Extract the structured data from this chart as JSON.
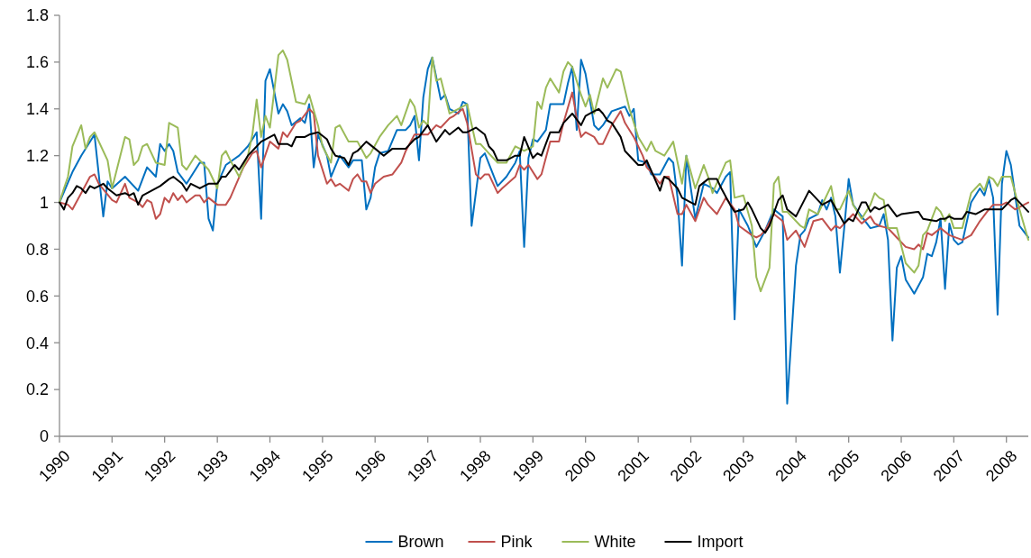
{
  "chart_data": {
    "type": "line",
    "xlim": [
      "1990-01",
      "2008-06"
    ],
    "xticks": [
      "1990",
      "1991",
      "1992",
      "1993",
      "1994",
      "1995",
      "1996",
      "1997",
      "1998",
      "1999",
      "2000",
      "2001",
      "2002",
      "2003",
      "2004",
      "2005",
      "2006",
      "2007",
      "2008"
    ],
    "ylim": [
      0,
      1.8
    ],
    "yticks": [
      0,
      0.2,
      0.4,
      0.6,
      0.8,
      1,
      1.2,
      1.4,
      1.6,
      1.8
    ],
    "legend": "bottom",
    "series": [
      {
        "name": "Brown",
        "color": "#0070c0",
        "x": [
          "1990-01",
          "1990-04",
          "1990-06",
          "1990-09",
          "1990-11",
          "1990-12",
          "1991-01",
          "1991-04",
          "1991-07",
          "1991-09",
          "1991-11",
          "1991-12",
          "1992-01",
          "1992-02",
          "1992-03",
          "1992-04",
          "1992-06",
          "1992-09",
          "1992-10",
          "1992-11",
          "1992-12",
          "1993-01",
          "1993-03",
          "1993-06",
          "1993-08",
          "1993-10",
          "1993-11",
          "1993-12",
          "1994-01",
          "1994-03",
          "1994-04",
          "1994-05",
          "1994-06",
          "1994-08",
          "1994-09",
          "1994-10",
          "1994-11",
          "1994-12",
          "1995-02",
          "1995-03",
          "1995-05",
          "1995-07",
          "1995-08",
          "1995-10",
          "1995-11",
          "1995-12",
          "1996-01",
          "1996-02",
          "1996-04",
          "1996-06",
          "1996-08",
          "1996-09",
          "1996-10",
          "1996-11",
          "1996-12",
          "1997-01",
          "1997-02",
          "1997-04",
          "1997-05",
          "1997-06",
          "1997-08",
          "1997-09",
          "1997-10",
          "1997-11",
          "1998-01",
          "1998-02",
          "1998-05",
          "1998-07",
          "1998-09",
          "1998-10",
          "1998-11",
          "1998-12",
          "1999-01",
          "1999-02",
          "1999-04",
          "1999-05",
          "1999-07",
          "1999-08",
          "1999-09",
          "1999-10",
          "1999-11",
          "1999-12",
          "2000-01",
          "2000-03",
          "2000-04",
          "2000-05",
          "2000-07",
          "2000-10",
          "2000-11",
          "2000-12",
          "2001-01",
          "2001-03",
          "2001-04",
          "2001-06",
          "2001-08",
          "2001-09",
          "2001-10",
          "2001-11",
          "2001-12",
          "2002-01",
          "2002-02",
          "2002-04",
          "2002-06",
          "2002-07",
          "2002-09",
          "2002-10",
          "2002-11",
          "2002-12",
          "2003-02",
          "2003-04",
          "2003-06",
          "2003-08",
          "2003-10",
          "2003-11",
          "2004-01",
          "2004-02",
          "2004-03",
          "2004-04",
          "2004-06",
          "2004-07",
          "2004-08",
          "2004-09",
          "2004-10",
          "2004-11",
          "2004-12",
          "2005-01",
          "2005-02",
          "2005-04",
          "2005-06",
          "2005-08",
          "2005-09",
          "2005-10",
          "2005-11",
          "2005-12",
          "2006-01",
          "2006-02",
          "2006-04",
          "2006-06",
          "2006-07",
          "2006-08",
          "2006-09",
          "2006-10",
          "2006-11",
          "2006-12",
          "2007-01",
          "2007-02",
          "2007-03",
          "2007-05",
          "2007-07",
          "2007-08",
          "2007-09",
          "2007-10",
          "2007-11",
          "2007-12",
          "2008-01",
          "2008-02",
          "2008-04",
          "2008-06"
        ],
        "values": [
          1.0,
          1.13,
          1.2,
          1.29,
          0.94,
          1.09,
          1.06,
          1.11,
          1.05,
          1.15,
          1.11,
          1.25,
          1.22,
          1.25,
          1.22,
          1.13,
          1.08,
          1.17,
          1.17,
          0.93,
          0.88,
          1.08,
          1.16,
          1.2,
          1.24,
          1.3,
          0.93,
          1.52,
          1.57,
          1.38,
          1.42,
          1.39,
          1.33,
          1.36,
          1.34,
          1.42,
          1.15,
          1.29,
          1.2,
          1.11,
          1.2,
          1.15,
          1.18,
          1.18,
          0.97,
          1.02,
          1.15,
          1.21,
          1.22,
          1.31,
          1.31,
          1.33,
          1.37,
          1.18,
          1.45,
          1.57,
          1.62,
          1.44,
          1.46,
          1.4,
          1.38,
          1.43,
          1.42,
          0.9,
          1.19,
          1.21,
          1.07,
          1.11,
          1.17,
          1.22,
          0.81,
          1.19,
          1.27,
          1.26,
          1.31,
          1.42,
          1.42,
          1.42,
          1.51,
          1.58,
          1.31,
          1.61,
          1.55,
          1.33,
          1.31,
          1.33,
          1.39,
          1.41,
          1.37,
          1.4,
          1.18,
          1.17,
          1.12,
          1.12,
          1.19,
          1.17,
          1.02,
          0.73,
          1.2,
          1.06,
          0.93,
          1.08,
          1.06,
          1.04,
          1.11,
          1.13,
          0.5,
          0.97,
          0.9,
          0.81,
          0.88,
          0.97,
          0.94,
          0.14,
          0.73,
          0.86,
          0.88,
          0.93,
          0.95,
          1.01,
          0.97,
          1.02,
          0.94,
          0.7,
          0.89,
          1.1,
          0.99,
          0.94,
          0.89,
          0.9,
          0.95,
          0.84,
          0.41,
          0.72,
          0.77,
          0.67,
          0.61,
          0.68,
          0.78,
          0.77,
          0.83,
          0.93,
          0.63,
          0.91,
          0.84,
          0.82,
          0.83,
          1.0,
          1.06,
          1.03,
          1.1,
          1.02,
          0.52,
          1.08,
          1.22,
          1.16,
          0.9,
          0.85
        ]
      },
      {
        "name": "Pink",
        "color": "#c0504d",
        "x": [
          "1990-01",
          "1990-03",
          "1990-04",
          "1990-06",
          "1990-08",
          "1990-09",
          "1990-10",
          "1991-01",
          "1991-02",
          "1991-04",
          "1991-05",
          "1991-07",
          "1991-08",
          "1991-09",
          "1991-10",
          "1991-11",
          "1991-12",
          "1992-01",
          "1992-02",
          "1992-03",
          "1992-04",
          "1992-05",
          "1992-06",
          "1992-08",
          "1992-09",
          "1992-10",
          "1992-11",
          "1993-01",
          "1993-03",
          "1993-04",
          "1993-07",
          "1993-09",
          "1993-10",
          "1993-11",
          "1994-01",
          "1994-03",
          "1994-04",
          "1994-05",
          "1994-07",
          "1994-08",
          "1994-10",
          "1994-11",
          "1994-12",
          "1995-02",
          "1995-03",
          "1995-04",
          "1995-05",
          "1995-07",
          "1995-08",
          "1995-09",
          "1995-10",
          "1995-11",
          "1995-12",
          "1996-01",
          "1996-03",
          "1996-05",
          "1996-07",
          "1996-08",
          "1996-10",
          "1997-01",
          "1997-03",
          "1997-04",
          "1997-06",
          "1997-07",
          "1997-09",
          "1997-10",
          "1997-12",
          "1998-01",
          "1998-02",
          "1998-03",
          "1998-05",
          "1998-06",
          "1998-09",
          "1998-10",
          "1998-11",
          "1998-12",
          "1999-02",
          "1999-03",
          "1999-05",
          "1999-07",
          "1999-08",
          "1999-10",
          "1999-11",
          "1999-12",
          "2000-01",
          "2000-03",
          "2000-04",
          "2000-05",
          "2000-07",
          "2000-09",
          "2000-10",
          "2000-12",
          "2001-02",
          "2001-03",
          "2001-04",
          "2001-06",
          "2001-07",
          "2001-08",
          "2001-10",
          "2001-11",
          "2001-12",
          "2002-02",
          "2002-04",
          "2002-05",
          "2002-07",
          "2002-09",
          "2002-11",
          "2002-12",
          "2003-03",
          "2003-04",
          "2003-05",
          "2003-06",
          "2003-08",
          "2003-10",
          "2003-11",
          "2004-01",
          "2004-03",
          "2004-05",
          "2004-07",
          "2004-09",
          "2004-10",
          "2004-11",
          "2005-02",
          "2005-04",
          "2005-06",
          "2005-07",
          "2005-08",
          "2005-10",
          "2005-12",
          "2006-02",
          "2006-04",
          "2006-05",
          "2006-06",
          "2006-07",
          "2006-08",
          "2006-10",
          "2006-12",
          "2007-03",
          "2007-05",
          "2007-07",
          "2007-09",
          "2007-10",
          "2007-12",
          "2008-01",
          "2008-03",
          "2008-06"
        ],
        "values": [
          1.0,
          0.99,
          0.97,
          1.04,
          1.11,
          1.12,
          1.08,
          1.01,
          1.0,
          1.08,
          1.02,
          1.0,
          0.98,
          1.01,
          1.0,
          0.93,
          0.95,
          1.02,
          1.0,
          1.04,
          1.01,
          1.03,
          1.0,
          1.03,
          1.03,
          1.0,
          1.02,
          0.99,
          0.99,
          1.02,
          1.15,
          1.21,
          1.22,
          1.15,
          1.26,
          1.23,
          1.3,
          1.28,
          1.34,
          1.35,
          1.4,
          1.38,
          1.2,
          1.08,
          1.1,
          1.07,
          1.08,
          1.05,
          1.1,
          1.12,
          1.09,
          1.09,
          1.04,
          1.08,
          1.11,
          1.12,
          1.17,
          1.22,
          1.29,
          1.29,
          1.33,
          1.32,
          1.36,
          1.37,
          1.4,
          1.34,
          1.12,
          1.1,
          1.12,
          1.12,
          1.04,
          1.06,
          1.11,
          1.16,
          1.14,
          1.16,
          1.1,
          1.12,
          1.26,
          1.26,
          1.34,
          1.47,
          1.36,
          1.28,
          1.3,
          1.28,
          1.25,
          1.25,
          1.33,
          1.39,
          1.34,
          1.28,
          1.2,
          1.15,
          1.13,
          1.08,
          1.11,
          1.11,
          0.95,
          0.95,
          0.99,
          0.92,
          1.02,
          0.99,
          0.95,
          1.02,
          0.97,
          0.9,
          0.86,
          0.85,
          0.86,
          0.88,
          0.95,
          0.92,
          0.84,
          0.88,
          0.81,
          0.92,
          0.93,
          0.88,
          0.9,
          0.89,
          0.95,
          0.91,
          0.94,
          0.91,
          0.9,
          0.89,
          0.85,
          0.81,
          0.8,
          0.82,
          0.8,
          0.87,
          0.86,
          0.89,
          0.86,
          0.84,
          0.86,
          0.92,
          0.97,
          0.99,
          0.99,
          1.0,
          0.97,
          1.0
        ]
      },
      {
        "name": "White",
        "color": "#9bbb59",
        "x": [
          "1990-01",
          "1990-02",
          "1990-03",
          "1990-04",
          "1990-06",
          "1990-07",
          "1990-08",
          "1990-09",
          "1990-12",
          "1991-01",
          "1991-04",
          "1991-05",
          "1991-06",
          "1991-07",
          "1991-08",
          "1991-09",
          "1991-11",
          "1992-01",
          "1992-02",
          "1992-04",
          "1992-05",
          "1992-06",
          "1992-08",
          "1992-10",
          "1992-11",
          "1993-01",
          "1993-02",
          "1993-03",
          "1993-04",
          "1993-06",
          "1993-08",
          "1993-09",
          "1993-10",
          "1993-11",
          "1993-12",
          "1994-01",
          "1994-03",
          "1994-04",
          "1994-05",
          "1994-07",
          "1994-09",
          "1994-10",
          "1994-12",
          "1995-01",
          "1995-03",
          "1995-04",
          "1995-05",
          "1995-07",
          "1995-09",
          "1995-11",
          "1995-12",
          "1996-02",
          "1996-04",
          "1996-06",
          "1996-07",
          "1996-09",
          "1996-10",
          "1996-11",
          "1996-12",
          "1997-01",
          "1997-02",
          "1997-03",
          "1997-04",
          "1997-06",
          "1997-07",
          "1997-09",
          "1997-10",
          "1997-12",
          "1998-01",
          "1998-03",
          "1998-05",
          "1998-07",
          "1998-09",
          "1998-11",
          "1999-01",
          "1999-02",
          "1999-03",
          "1999-04",
          "1999-05",
          "1999-07",
          "1999-08",
          "1999-09",
          "1999-10",
          "1999-12",
          "2000-01",
          "2000-02",
          "2000-03",
          "2000-05",
          "2000-06",
          "2000-08",
          "2000-09",
          "2000-11",
          "2001-01",
          "2001-03",
          "2001-04",
          "2001-05",
          "2001-07",
          "2001-09",
          "2001-11",
          "2001-12",
          "2002-02",
          "2002-04",
          "2002-05",
          "2002-06",
          "2002-09",
          "2002-10",
          "2002-11",
          "2003-01",
          "2003-03",
          "2003-04",
          "2003-05",
          "2003-07",
          "2003-08",
          "2003-09",
          "2003-10",
          "2003-11",
          "2004-02",
          "2004-03",
          "2004-04",
          "2004-06",
          "2004-09",
          "2004-10",
          "2004-11",
          "2005-01",
          "2005-02",
          "2005-04",
          "2005-06",
          "2005-07",
          "2005-08",
          "2005-09",
          "2005-10",
          "2005-12",
          "2006-02",
          "2006-04",
          "2006-05",
          "2006-06",
          "2006-07",
          "2006-09",
          "2006-10",
          "2006-11",
          "2006-12",
          "2007-01",
          "2007-03",
          "2007-05",
          "2007-07",
          "2007-08",
          "2007-09",
          "2007-10",
          "2007-11",
          "2007-12",
          "2008-02",
          "2008-04",
          "2008-06"
        ],
        "values": [
          1.0,
          1.06,
          1.11,
          1.24,
          1.33,
          1.23,
          1.28,
          1.3,
          1.18,
          1.06,
          1.28,
          1.27,
          1.16,
          1.18,
          1.24,
          1.25,
          1.17,
          1.16,
          1.34,
          1.32,
          1.16,
          1.14,
          1.2,
          1.16,
          1.14,
          1.06,
          1.2,
          1.22,
          1.18,
          1.11,
          1.2,
          1.29,
          1.44,
          1.28,
          1.37,
          1.32,
          1.63,
          1.65,
          1.61,
          1.43,
          1.42,
          1.46,
          1.33,
          1.24,
          1.17,
          1.32,
          1.33,
          1.26,
          1.26,
          1.19,
          1.21,
          1.28,
          1.33,
          1.37,
          1.33,
          1.44,
          1.41,
          1.32,
          1.35,
          1.33,
          1.62,
          1.52,
          1.53,
          1.38,
          1.39,
          1.41,
          1.42,
          1.25,
          1.25,
          1.21,
          1.17,
          1.17,
          1.24,
          1.22,
          1.24,
          1.43,
          1.4,
          1.49,
          1.53,
          1.47,
          1.56,
          1.6,
          1.58,
          1.46,
          1.41,
          1.46,
          1.38,
          1.53,
          1.49,
          1.57,
          1.56,
          1.4,
          1.28,
          1.22,
          1.26,
          1.22,
          1.2,
          1.26,
          1.08,
          1.2,
          1.06,
          1.16,
          1.11,
          1.04,
          1.17,
          1.18,
          1.02,
          1.03,
          0.9,
          0.68,
          0.62,
          0.72,
          1.08,
          1.11,
          0.96,
          0.96,
          0.9,
          0.89,
          0.97,
          0.95,
          1.07,
          0.97,
          0.97,
          1.05,
          0.99,
          0.93,
          0.99,
          1.04,
          1.02,
          1.01,
          0.89,
          0.89,
          0.74,
          0.7,
          0.73,
          0.86,
          0.88,
          0.98,
          0.96,
          0.92,
          0.95,
          0.89,
          0.89,
          1.04,
          1.08,
          1.05,
          1.11,
          1.1,
          1.07,
          1.11,
          1.11,
          0.97,
          0.84
        ]
      },
      {
        "name": "Import",
        "color": "#000000",
        "x": [
          "1990-01",
          "1990-02",
          "1990-03",
          "1990-04",
          "1990-05",
          "1990-06",
          "1990-07",
          "1990-08",
          "1990-09",
          "1990-11",
          "1990-12",
          "1991-02",
          "1991-04",
          "1991-05",
          "1991-06",
          "1991-07",
          "1991-08",
          "1991-10",
          "1991-12",
          "1992-02",
          "1992-03",
          "1992-05",
          "1992-06",
          "1992-07",
          "1992-09",
          "1992-10",
          "1992-11",
          "1993-01",
          "1993-02",
          "1993-03",
          "1993-05",
          "1993-06",
          "1993-08",
          "1993-09",
          "1993-11",
          "1993-12",
          "1994-02",
          "1994-03",
          "1994-05",
          "1994-06",
          "1994-07",
          "1994-09",
          "1994-10",
          "1994-12",
          "1995-02",
          "1995-03",
          "1995-04",
          "1995-06",
          "1995-07",
          "1995-08",
          "1995-09",
          "1995-11",
          "1996-01",
          "1996-03",
          "1996-05",
          "1996-06",
          "1996-08",
          "1996-10",
          "1996-11",
          "1997-01",
          "1997-03",
          "1997-05",
          "1997-06",
          "1997-08",
          "1997-09",
          "1997-10",
          "1997-12",
          "1998-02",
          "1998-03",
          "1998-04",
          "1998-05",
          "1998-07",
          "1998-09",
          "1998-10",
          "1998-11",
          "1999-01",
          "1999-02",
          "1999-03",
          "1999-05",
          "1999-07",
          "1999-08",
          "1999-10",
          "1999-12",
          "2000-01",
          "2000-02",
          "2000-04",
          "2000-05",
          "2000-06",
          "2000-07",
          "2000-09",
          "2000-10",
          "2001-01",
          "2001-02",
          "2001-03",
          "2001-06",
          "2001-07",
          "2001-08",
          "2001-10",
          "2001-11",
          "2002-02",
          "2002-03",
          "2002-05",
          "2002-07",
          "2002-08",
          "2002-10",
          "2002-11",
          "2003-01",
          "2003-02",
          "2003-03",
          "2003-05",
          "2003-06",
          "2003-07",
          "2003-09",
          "2003-10",
          "2003-11",
          "2004-01",
          "2004-04",
          "2004-07",
          "2004-09",
          "2004-12",
          "2005-01",
          "2005-02",
          "2005-04",
          "2005-05",
          "2005-06",
          "2005-07",
          "2005-08",
          "2005-10",
          "2005-12",
          "2006-01",
          "2006-05",
          "2006-06",
          "2006-09",
          "2006-10",
          "2006-11",
          "2006-12",
          "2007-01",
          "2007-03",
          "2007-04",
          "2007-06",
          "2007-08",
          "2007-12",
          "2008-02",
          "2008-03",
          "2008-06"
        ],
        "values": [
          1.0,
          0.97,
          1.02,
          1.04,
          1.07,
          1.06,
          1.04,
          1.07,
          1.06,
          1.08,
          1.06,
          1.03,
          1.04,
          1.03,
          1.04,
          0.99,
          1.03,
          1.05,
          1.07,
          1.1,
          1.11,
          1.08,
          1.05,
          1.08,
          1.06,
          1.07,
          1.08,
          1.08,
          1.11,
          1.11,
          1.16,
          1.14,
          1.2,
          1.22,
          1.26,
          1.27,
          1.29,
          1.25,
          1.25,
          1.24,
          1.28,
          1.28,
          1.29,
          1.3,
          1.27,
          1.23,
          1.2,
          1.19,
          1.16,
          1.21,
          1.22,
          1.26,
          1.23,
          1.2,
          1.23,
          1.23,
          1.23,
          1.27,
          1.28,
          1.33,
          1.26,
          1.31,
          1.29,
          1.32,
          1.3,
          1.3,
          1.32,
          1.29,
          1.24,
          1.22,
          1.18,
          1.18,
          1.2,
          1.2,
          1.28,
          1.19,
          1.21,
          1.2,
          1.3,
          1.3,
          1.34,
          1.38,
          1.33,
          1.37,
          1.38,
          1.4,
          1.38,
          1.35,
          1.34,
          1.28,
          1.22,
          1.16,
          1.16,
          1.18,
          1.05,
          1.11,
          1.1,
          1.06,
          1.02,
          0.99,
          1.07,
          1.1,
          1.1,
          1.06,
          0.99,
          0.96,
          0.97,
          1.0,
          0.97,
          0.89,
          0.87,
          0.9,
          1.01,
          1.03,
          0.97,
          0.94,
          1.05,
          0.99,
          1.01,
          0.91,
          0.93,
          0.92,
          1.0,
          1.0,
          0.96,
          0.98,
          0.97,
          0.99,
          0.94,
          0.95,
          0.96,
          0.93,
          0.92,
          0.93,
          0.93,
          0.94,
          0.93,
          0.93,
          0.96,
          0.95,
          0.97,
          0.97,
          1.01,
          1.02,
          0.96
        ]
      }
    ]
  }
}
